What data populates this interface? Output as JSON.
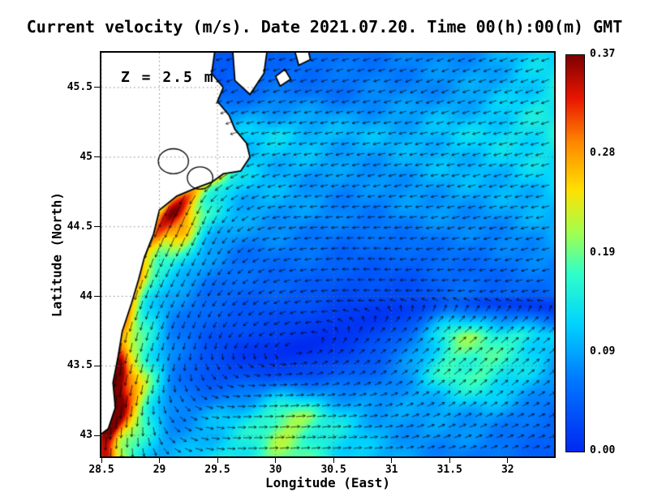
{
  "title": "Current velocity (m/s). Date 2021.07.20. Time 00(h):00(m) GMT",
  "annotation": {
    "depth_label": "Z = 2.5 m"
  },
  "axes": {
    "x": {
      "label": "Longitude (East)",
      "range": [
        28.5,
        32.4
      ],
      "ticks": [
        [
          28.5,
          "28.5"
        ],
        [
          29,
          "29"
        ],
        [
          29.5,
          "29.5"
        ],
        [
          30,
          "30"
        ],
        [
          30.5,
          "30.5"
        ],
        [
          31,
          "31"
        ],
        [
          31.5,
          "31.5"
        ],
        [
          32,
          "32"
        ]
      ]
    },
    "y": {
      "label": "Latitude (North)",
      "range": [
        42.85,
        45.75
      ],
      "ticks": [
        [
          43,
          "43"
        ],
        [
          43.5,
          "43.5"
        ],
        [
          44,
          "44"
        ],
        [
          44.5,
          "44.5"
        ],
        [
          45,
          "45"
        ],
        [
          45.5,
          "45.5"
        ]
      ]
    }
  },
  "colorbar": {
    "units": "m/s",
    "min": 0,
    "max": 0.37,
    "tick_labels_top_to_bottom": [
      "0.37",
      "0.28",
      "0.19",
      "0.09",
      "0.00"
    ],
    "stops": [
      [
        0,
        "#0028f0"
      ],
      [
        0.18,
        "#0078ff"
      ],
      [
        0.32,
        "#00d2ff"
      ],
      [
        0.45,
        "#30ffc8"
      ],
      [
        0.55,
        "#a0ff50"
      ],
      [
        0.66,
        "#ffe000"
      ],
      [
        0.78,
        "#ff8700"
      ],
      [
        0.89,
        "#e81600"
      ],
      [
        1,
        "#7d0000"
      ]
    ]
  },
  "chart_data": {
    "type": "heatmap",
    "subtype": "current speed heatmap with quiver arrows over western Black Sea",
    "units": "m/s",
    "depth_m": 2.5,
    "grid": {
      "lon0": 28.5,
      "dlon": 0.3,
      "nx": 14,
      "lat0": 45.75,
      "dlat": 0.29,
      "ny": 11
    },
    "u": [
      [
        -0.02,
        -0.02,
        -0.02,
        -0.03,
        -0.04,
        -0.05,
        -0.05,
        -0.06,
        -0.06,
        -0.07,
        -0.07,
        -0.08,
        -0.1,
        -0.12
      ],
      [
        -0.02,
        -0.03,
        -0.03,
        -0.04,
        -0.05,
        -0.06,
        -0.06,
        -0.06,
        -0.07,
        -0.07,
        -0.08,
        -0.09,
        -0.11,
        -0.13
      ],
      [
        -0.03,
        -0.04,
        -0.05,
        -0.08,
        -0.11,
        -0.12,
        -0.11,
        -0.1,
        -0.1,
        -0.1,
        -0.11,
        -0.12,
        -0.13,
        -0.14
      ],
      [
        -0.02,
        -0.05,
        -0.1,
        -0.12,
        -0.11,
        -0.1,
        -0.09,
        -0.08,
        -0.08,
        -0.09,
        -0.1,
        -0.1,
        -0.11,
        -0.12
      ],
      [
        -0.02,
        -0.06,
        -0.1,
        -0.06,
        -0.08,
        -0.09,
        -0.08,
        -0.07,
        -0.07,
        -0.08,
        -0.08,
        -0.08,
        -0.09,
        -0.1
      ],
      [
        -0.03,
        -0.05,
        -0.07,
        -0.04,
        -0.05,
        -0.06,
        -0.06,
        -0.05,
        -0.05,
        -0.05,
        -0.06,
        -0.06,
        -0.07,
        -0.08
      ],
      [
        -0.04,
        -0.05,
        -0.04,
        -0.03,
        -0.04,
        -0.04,
        -0.04,
        -0.03,
        -0.03,
        -0.03,
        -0.04,
        -0.04,
        -0.05,
        -0.05
      ],
      [
        -0.04,
        -0.04,
        -0.02,
        -0.01,
        -0.02,
        -0.02,
        -0.01,
        0.0,
        0.02,
        0.05,
        0.09,
        0.12,
        0.12,
        0.09
      ],
      [
        -0.04,
        -0.05,
        -0.01,
        0.02,
        0.03,
        0.03,
        0.03,
        0.04,
        0.05,
        0.08,
        0.12,
        0.13,
        0.1,
        0.07
      ],
      [
        -0.03,
        -0.02,
        0.05,
        0.09,
        0.12,
        0.15,
        0.16,
        0.12,
        0.09,
        0.08,
        0.08,
        0.08,
        0.06,
        0.05
      ],
      [
        -0.02,
        0.02,
        0.08,
        0.12,
        0.15,
        0.17,
        0.16,
        0.13,
        0.1,
        0.08,
        0.07,
        0.06,
        0.05,
        0.04
      ]
    ],
    "v": [
      [
        -0.01,
        -0.01,
        -0.01,
        -0.01,
        -0.01,
        -0.01,
        -0.02,
        -0.02,
        -0.02,
        -0.02,
        -0.03,
        -0.03,
        -0.04,
        -0.04
      ],
      [
        -0.01,
        -0.01,
        -0.01,
        -0.02,
        -0.02,
        -0.02,
        -0.02,
        -0.02,
        -0.02,
        -0.03,
        -0.03,
        -0.03,
        -0.04,
        -0.05
      ],
      [
        -0.01,
        -0.01,
        -0.02,
        -0.04,
        -0.03,
        -0.02,
        -0.02,
        -0.02,
        -0.02,
        -0.02,
        -0.03,
        -0.03,
        -0.03,
        -0.04
      ],
      [
        -0.02,
        -0.06,
        -0.14,
        -0.1,
        -0.05,
        -0.03,
        -0.02,
        -0.02,
        -0.02,
        -0.02,
        -0.02,
        -0.03,
        -0.03,
        -0.03
      ],
      [
        -0.03,
        -0.12,
        -0.24,
        -0.14,
        -0.06,
        -0.02,
        -0.01,
        -0.01,
        -0.01,
        -0.01,
        -0.02,
        -0.02,
        -0.02,
        -0.02
      ],
      [
        -0.06,
        -0.18,
        -0.16,
        -0.08,
        -0.04,
        -0.02,
        -0.01,
        0.0,
        0.0,
        -0.01,
        -0.01,
        -0.01,
        -0.02,
        -0.02
      ],
      [
        -0.1,
        -0.16,
        -0.08,
        -0.05,
        -0.03,
        -0.02,
        -0.01,
        0.0,
        0.0,
        0.0,
        0.0,
        -0.01,
        -0.01,
        -0.01
      ],
      [
        -0.22,
        -0.18,
        -0.07,
        -0.04,
        -0.02,
        -0.01,
        0.0,
        0.01,
        0.02,
        0.04,
        0.08,
        0.1,
        0.1,
        0.07
      ],
      [
        -0.3,
        -0.22,
        -0.08,
        -0.03,
        -0.01,
        0.0,
        0.01,
        0.02,
        0.03,
        0.06,
        0.1,
        0.11,
        0.08,
        0.05
      ],
      [
        -0.33,
        -0.2,
        -0.06,
        -0.02,
        0.0,
        0.01,
        0.02,
        0.02,
        0.02,
        0.03,
        0.04,
        0.04,
        0.03,
        0.02
      ],
      [
        -0.28,
        -0.15,
        -0.05,
        -0.02,
        0.0,
        0.01,
        0.01,
        0.01,
        0.01,
        0.02,
        0.02,
        0.02,
        0.02,
        0.01
      ]
    ],
    "jet": {
      "path": [
        [
          29.55,
          44.95
        ],
        [
          29.3,
          44.75
        ],
        [
          29.05,
          44.55
        ],
        [
          28.92,
          44.35
        ],
        [
          28.8,
          44.1
        ],
        [
          28.72,
          43.85
        ],
        [
          28.66,
          43.6
        ],
        [
          28.6,
          43.35
        ],
        [
          28.58,
          43.1
        ],
        [
          28.55,
          42.85
        ]
      ],
      "amp": 0.09,
      "width": 0.07
    },
    "hotspots": [
      [
        28.62,
        43.28,
        0.14,
        0.18
      ],
      [
        29.2,
        44.52,
        0.1,
        0.13
      ],
      [
        29.5,
        44.87,
        0.07,
        0.1
      ],
      [
        31.55,
        43.75,
        0.05,
        0.25
      ],
      [
        30.1,
        43.08,
        0.05,
        0.2
      ]
    ],
    "coastline": [
      [
        29.5,
        45.9
      ],
      [
        29.45,
        45.6
      ],
      [
        29.55,
        45.5
      ],
      [
        29.5,
        45.4
      ],
      [
        29.6,
        45.3
      ],
      [
        29.65,
        45.2
      ],
      [
        29.75,
        45.1
      ],
      [
        29.78,
        45.0
      ],
      [
        29.7,
        44.9
      ],
      [
        29.55,
        44.88
      ],
      [
        29.45,
        44.82
      ],
      [
        29.32,
        44.78
      ],
      [
        29.15,
        44.72
      ],
      [
        29.0,
        44.62
      ],
      [
        28.95,
        44.45
      ],
      [
        28.87,
        44.28
      ],
      [
        28.82,
        44.12
      ],
      [
        28.76,
        43.95
      ],
      [
        28.68,
        43.75
      ],
      [
        28.64,
        43.55
      ],
      [
        28.6,
        43.38
      ],
      [
        28.62,
        43.2
      ],
      [
        28.56,
        43.05
      ],
      [
        28.4,
        42.95
      ],
      [
        27.5,
        42.95
      ],
      [
        27.5,
        45.9
      ]
    ],
    "islands": [
      [
        [
          29.62,
          45.9
        ],
        [
          29.95,
          45.9
        ],
        [
          29.9,
          45.6
        ],
        [
          29.78,
          45.45
        ],
        [
          29.65,
          45.55
        ]
      ],
      [
        [
          30.0,
          45.58
        ],
        [
          30.08,
          45.63
        ],
        [
          30.13,
          45.56
        ],
        [
          30.04,
          45.51
        ]
      ],
      [
        [
          30.16,
          45.78
        ],
        [
          30.28,
          45.78
        ],
        [
          30.3,
          45.7
        ],
        [
          30.2,
          45.66
        ]
      ]
    ],
    "lagoons": [
      [
        29.12,
        44.97,
        0.13,
        0.09
      ],
      [
        29.35,
        44.85,
        0.11,
        0.08
      ]
    ]
  }
}
